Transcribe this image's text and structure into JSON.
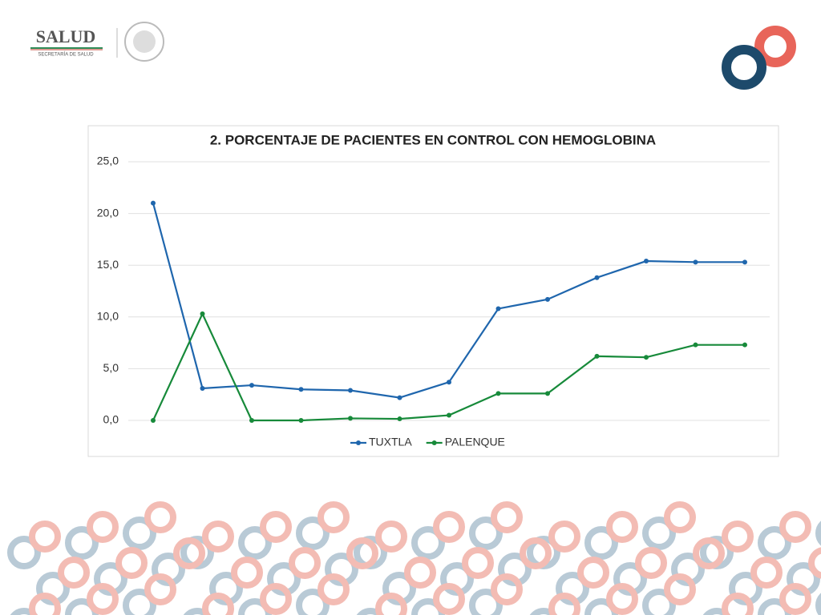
{
  "header": {
    "logo_text": "SALUD",
    "logo_subtext": "SECRETARÍA DE SALUD"
  },
  "chart_data": {
    "type": "line",
    "title": "2. PORCENTAJE DE PACIENTES EN CONTROL CON HEMOGLOBINA",
    "categories": [
      null,
      null,
      null,
      null,
      null,
      null,
      null,
      null,
      null,
      null,
      null,
      null,
      null
    ],
    "series": [
      {
        "name": "TUXTLA",
        "color": "#1f66ad",
        "values": [
          21.0,
          3.1,
          3.4,
          3.0,
          2.9,
          2.2,
          3.7,
          10.8,
          11.7,
          13.8,
          15.4,
          15.3,
          15.3
        ]
      },
      {
        "name": "PALENQUE",
        "color": "#178a3a",
        "values": [
          0.0,
          10.3,
          0.0,
          0.0,
          0.2,
          0.15,
          0.5,
          2.6,
          2.6,
          6.2,
          6.1,
          7.3,
          7.3
        ]
      }
    ],
    "ylim": [
      0,
      25
    ],
    "yticks": [
      {
        "value": 0,
        "label": "0,0"
      },
      {
        "value": 5,
        "label": "5,0"
      },
      {
        "value": 10,
        "label": "10,0"
      },
      {
        "value": 15,
        "label": "15,0"
      },
      {
        "value": 20,
        "label": "20,0"
      },
      {
        "value": 25,
        "label": "25,0"
      }
    ],
    "grid": true,
    "legend": "bottom"
  }
}
